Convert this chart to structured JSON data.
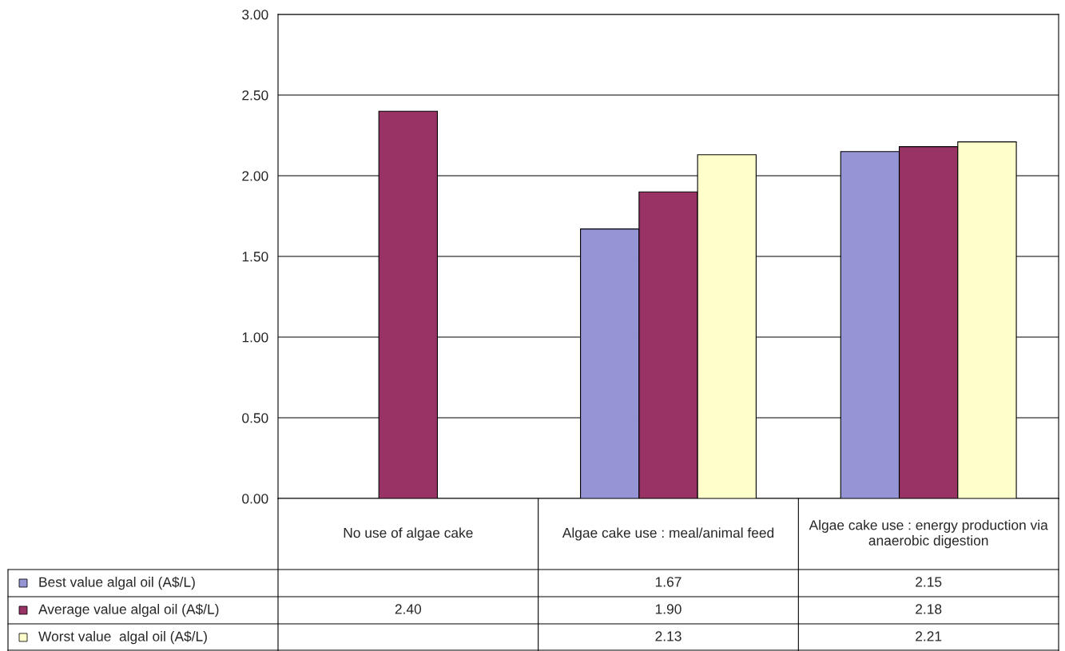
{
  "chart_data": {
    "type": "bar",
    "categories": [
      "No use of algae cake",
      "Algae cake use : meal/animal feed",
      "Algae cake use : energy production via anaerobic digestion"
    ],
    "series": [
      {
        "name": "Best value algal oil (A$/L)",
        "color": "#9595d5",
        "values": [
          null,
          1.67,
          2.15
        ],
        "value_labels": [
          null,
          "1.67",
          "2.15"
        ]
      },
      {
        "name": "Average value algal oil (A$/L)",
        "color": "#993366",
        "values": [
          2.4,
          1.9,
          2.18
        ],
        "value_labels": [
          "2.40",
          "1.90",
          "2.18"
        ]
      },
      {
        "name": "Worst value  algal oil (A$/L)",
        "color": "#ffffcc",
        "values": [
          null,
          2.13,
          2.21
        ],
        "value_labels": [
          null,
          "2.13",
          "2.21"
        ]
      }
    ],
    "ylim": [
      0,
      3
    ],
    "yticks": [
      {
        "value": 0,
        "label": "0.00"
      },
      {
        "value": 0.5,
        "label": "0.50"
      },
      {
        "value": 1,
        "label": "1.00"
      },
      {
        "value": 1.5,
        "label": "1.50"
      },
      {
        "value": 2,
        "label": "2.00"
      },
      {
        "value": 2.5,
        "label": "2.50"
      },
      {
        "value": 3,
        "label": "3.00"
      }
    ],
    "grid": "y",
    "legend": "bottom left"
  }
}
